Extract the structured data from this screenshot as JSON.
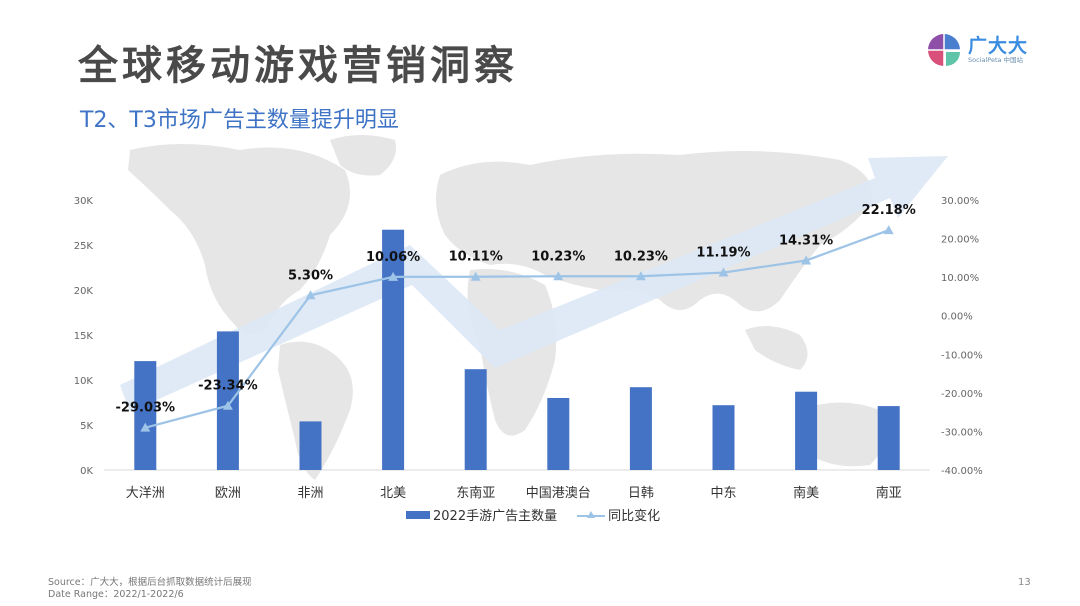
{
  "header": {
    "title": "全球移动游戏营销洞察",
    "subtitle": "T2、T3市场广告主数量提升明显"
  },
  "logo": {
    "name": "广大大",
    "sub": "SocialPeta 中国站"
  },
  "chart_data": {
    "type": "bar+line",
    "title": "T2、T3市场广告主数量提升明显",
    "categories": [
      "大洋洲",
      "欧洲",
      "非洲",
      "北美",
      "东南亚",
      "中国港澳台",
      "日韩",
      "中东",
      "南美",
      "南亚"
    ],
    "series": [
      {
        "name": "2022手游广告主数量",
        "type": "bar",
        "axis": "left",
        "color": "#4472c4",
        "values": [
          12100,
          15400,
          5400,
          26700,
          11200,
          8000,
          9200,
          7200,
          8700,
          7100
        ]
      },
      {
        "name": "同比变化",
        "type": "line",
        "axis": "right",
        "color": "#9dc3e6",
        "marker": "triangle",
        "values": [
          -29.03,
          -23.34,
          5.3,
          10.06,
          10.11,
          10.23,
          10.23,
          11.19,
          14.31,
          22.18
        ],
        "labels": [
          "-29.03%",
          "-23.34%",
          "5.30%",
          "10.06%",
          "10.11%",
          "10.23%",
          "10.23%",
          "11.19%",
          "14.31%",
          "22.18%"
        ]
      }
    ],
    "left_axis": {
      "ticks": [
        "0K",
        "5K",
        "10K",
        "15K",
        "20K",
        "25K",
        "30K"
      ],
      "ylim": [
        0,
        30000
      ]
    },
    "right_axis": {
      "ticks": [
        "-40.00%",
        "-30.00%",
        "-20.00%",
        "-10.00%",
        "0.00%",
        "10.00%",
        "20.00%",
        "30.00%"
      ],
      "ylim": [
        -40,
        30
      ]
    },
    "grid": false,
    "legend_position": "bottom",
    "xlabel": "",
    "ylabel": ""
  },
  "legend": {
    "bar_label": "2022手游广告主数量",
    "line_label": "同比变化"
  },
  "footer": {
    "source": "Source：广大大，根据后台抓取数据统计后展现",
    "date_range": "Date Range：2022/1-2022/6"
  },
  "page_number": "13"
}
